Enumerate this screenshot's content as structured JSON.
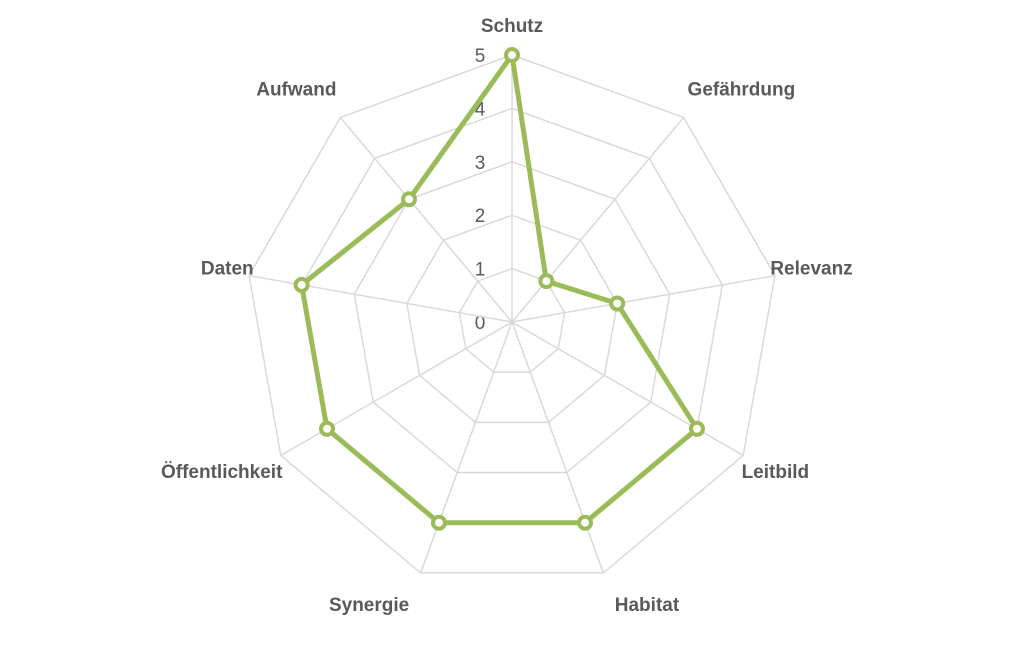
{
  "chart_data": {
    "type": "radar",
    "categories": [
      "Schutz",
      "Gefährdung",
      "Relevanz",
      "Leitbild",
      "Habitat",
      "Synergie",
      "Öffentlichkeit",
      "Daten",
      "Aufwand"
    ],
    "series": [
      {
        "color": "#9bbb59",
        "values": [
          5,
          1,
          2,
          4,
          4,
          4,
          4,
          4,
          3
        ]
      }
    ],
    "ylim": [
      0,
      5
    ],
    "yticks": [
      0,
      1,
      2,
      3,
      4,
      5
    ],
    "grid": true
  }
}
